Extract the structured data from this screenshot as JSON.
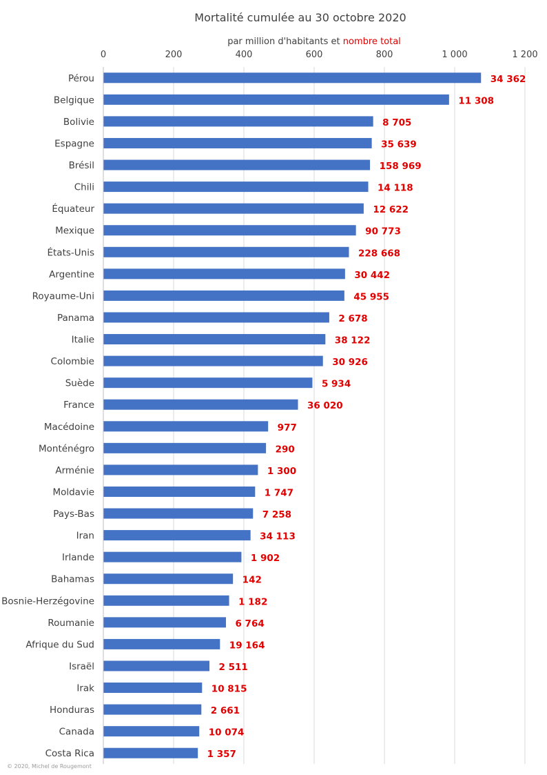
{
  "chart_data": {
    "type": "bar",
    "orientation": "horizontal",
    "title": "Mortalité cumulée au 30 octobre 2020",
    "subtitle_prefix": "par million d'habitants et ",
    "subtitle_highlight": "nombre total",
    "xlim": [
      0,
      1200
    ],
    "x_ticks": [
      "0",
      "200",
      "400",
      "600",
      "800",
      "1 000",
      "1 200"
    ],
    "x_tick_values": [
      0,
      200,
      400,
      600,
      800,
      1000,
      1200
    ],
    "grid": true,
    "bar_color": "#4472c4",
    "label_color": "#e00000",
    "categories": [
      "Pérou",
      "Belgique",
      "Bolivie",
      "Espagne",
      "Brésil",
      "Chili",
      "Équateur",
      "Mexique",
      "États-Unis",
      "Argentine",
      "Royaume-Uni",
      "Panama",
      "Italie",
      "Colombie",
      "Suède",
      "France",
      "Macédoine",
      "Monténégro",
      "Arménie",
      "Moldavie",
      "Pays-Bas",
      "Iran",
      "Irlande",
      "Bahamas",
      "Bosnie-Herzégovine",
      "Roumanie",
      "Afrique du Sud",
      "Israël",
      "Irak",
      "Honduras",
      "Canada",
      "Costa Rica"
    ],
    "series": [
      {
        "name": "par million d'habitants",
        "values": [
          1074,
          983,
          767,
          763,
          758,
          753,
          740,
          718,
          698,
          687,
          685,
          642,
          631,
          624,
          594,
          553,
          468,
          462,
          439,
          431,
          425,
          418,
          392,
          368,
          357,
          348,
          331,
          301,
          280,
          278,
          272,
          268
        ]
      },
      {
        "name": "nombre total",
        "labels": [
          "34 362",
          "11 308",
          "8 705",
          "35 639",
          "158 969",
          "14 118",
          "12 622",
          "90 773",
          "228 668",
          "30 442",
          "45 955",
          "2 678",
          "38 122",
          "30 926",
          "5 934",
          "36 020",
          "977",
          "290",
          "1 300",
          "1 747",
          "7 258",
          "34 113",
          "1 902",
          "142",
          "1 182",
          "6 764",
          "19 164",
          "2 511",
          "10 815",
          "2 661",
          "10 074",
          "1 357"
        ]
      }
    ]
  },
  "credit": "© 2020, Michel de Rougemont"
}
